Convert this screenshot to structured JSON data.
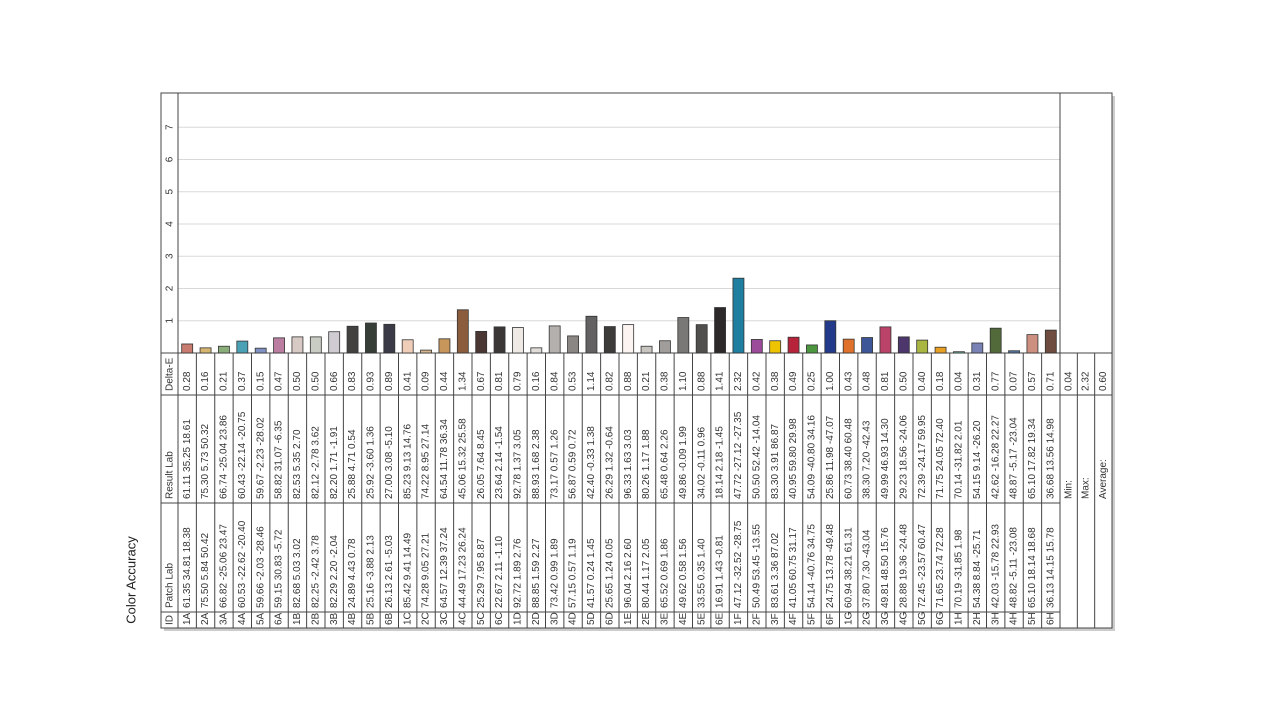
{
  "chart_data": {
    "type": "bar",
    "title": "Color Accuracy",
    "headers": [
      "ID",
      "Patch Lab",
      "Result Lab",
      "Delta-E"
    ],
    "ylim": [
      0,
      8
    ],
    "yticks": [
      1,
      2,
      3,
      4,
      5,
      6,
      7
    ],
    "grid": true,
    "categories": [
      "1A",
      "2A",
      "3A",
      "4A",
      "5A",
      "6A",
      "1B",
      "2B",
      "3B",
      "4B",
      "5B",
      "6B",
      "1C",
      "2C",
      "3C",
      "4C",
      "5C",
      "6C",
      "1D",
      "2D",
      "3D",
      "4D",
      "5D",
      "6D",
      "1E",
      "2E",
      "3E",
      "4E",
      "5E",
      "6E",
      "1F",
      "2F",
      "3F",
      "4F",
      "5F",
      "6F",
      "1G",
      "2G",
      "3G",
      "4G",
      "5G",
      "6G",
      "1H",
      "2H",
      "3H",
      "4H",
      "5H",
      "6H"
    ],
    "patch_lab": [
      "61.35 34.81 18.38",
      "75.50 5.84 50.42",
      "66.82 -25.06 23.47",
      "60.53 -22.62 -20.40",
      "59.66 -2.03 -28.46",
      "59.15 30.83 -5.72",
      "82.68 5.03 3.02",
      "82.25 -2.42 3.78",
      "82.29 2.20 -2.04",
      "24.89 4.43 0.78",
      "25.16 -3.88 2.13",
      "26.13 2.61 -5.03",
      "85.42 9.41 14.49",
      "74.28 9.05 27.21",
      "64.57 12.39 37.24",
      "44.49 17.23 26.24",
      "25.29 7.95 8.87",
      "22.67 2.11 -1.10",
      "92.72 1.89 2.76",
      "88.85 1.59 2.27",
      "73.42 0.99 1.89",
      "57.15 0.57 1.19",
      "41.57 0.24 1.45",
      "25.65 1.24 0.05",
      "96.04 2.16 2.60",
      "80.44 1.17 2.05",
      "65.52 0.69 1.86",
      "49.62 0.58 1.56",
      "33.55 0.35 1.40",
      "16.91 1.43 -0.81",
      "47.12 -32.52 -28.75",
      "50.49 53.45 -13.55",
      "83.61 3.36 87.02",
      "41.05 60.75 31.17",
      "54.14 -40.76 34.75",
      "24.75 13.78 -49.48",
      "60.94 38.21 61.31",
      "37.80 7.30 -43.04",
      "49.81 48.50 15.76",
      "28.88 19.36 -24.48",
      "72.45 -23.57 60.47",
      "71.65 23.74 72.28",
      "70.19 -31.85 1.98",
      "54.38 8.84 -25.71",
      "42.03 -15.78 22.93",
      "48.82 -5.11 -23.08",
      "65.10 18.14 18.68",
      "36.13 14.15 15.78"
    ],
    "result_lab": [
      "61.11 35.25 18.61",
      "75.30 5.73 50.32",
      "66.74 -25.04 23.86",
      "60.43 -22.14 -20.75",
      "59.67 -2.23 -28.02",
      "58.82 31.07 -6.35",
      "82.53 5.35 2.70",
      "82.12 -2.78 3.62",
      "82.20 1.71 -1.91",
      "25.88 4.71 0.54",
      "25.92 -3.60 1.36",
      "27.00 3.08 -5.10",
      "85.23 9.13 14.76",
      "74.22 8.95 27.14",
      "64.54 11.78 36.34",
      "45.06 15.32 25.58",
      "26.05 7.64 8.45",
      "23.64 2.14 -1.54",
      "92.78 1.37 3.05",
      "88.93 1.68 2.38",
      "73.17 0.57 1.26",
      "56.87 0.59 0.72",
      "42.40 -0.33 1.38",
      "26.29 1.32 -0.64",
      "96.33 1.63 3.03",
      "80.26 1.17 1.88",
      "65.48 0.64 2.26",
      "49.86 -0.09 1.99",
      "34.02 -0.11 0.96",
      "18.14 2.18 -1.45",
      "47.72 -27.12 -27.35",
      "50.50 52.42 -14.04",
      "83.30 3.91 86.87",
      "40.95 59.80 29.98",
      "54.09 -40.80 34.16",
      "25.86 11.98 -47.07",
      "60.73 38.40 60.48",
      "38.30 7.20 -42.43",
      "49.99 46.93 14.30",
      "29.23 18.56 -24.06",
      "72.39 -24.17 59.95",
      "71.75 24.05 72.40",
      "70.14 -31.82 2.01",
      "54.15 9.14 -26.20",
      "42.62 -16.28 22.27",
      "48.87 -5.17 -23.04",
      "65.10 17.82 19.34",
      "36.68 13.56 14.98"
    ],
    "values": [
      0.28,
      0.16,
      0.21,
      0.37,
      0.15,
      0.47,
      0.5,
      0.5,
      0.66,
      0.83,
      0.93,
      0.89,
      0.41,
      0.09,
      0.44,
      1.34,
      0.67,
      0.81,
      0.79,
      0.16,
      0.84,
      0.53,
      1.14,
      0.82,
      0.88,
      0.21,
      0.38,
      1.1,
      0.88,
      1.41,
      2.32,
      0.42,
      0.38,
      0.49,
      0.25,
      1.0,
      0.43,
      0.48,
      0.81,
      0.5,
      0.4,
      0.18,
      0.04,
      0.31,
      0.77,
      0.07,
      0.57,
      0.71
    ],
    "value_labels": [
      "0.28",
      "0.16",
      "0.21",
      "0.37",
      "0.15",
      "0.47",
      "0.50",
      "0.50",
      "0.66",
      "0.83",
      "0.93",
      "0.89",
      "0.41",
      "0.09",
      "0.44",
      "1.34",
      "0.67",
      "0.81",
      "0.79",
      "0.16",
      "0.84",
      "0.53",
      "1.14",
      "0.82",
      "0.88",
      "0.21",
      "0.38",
      "1.10",
      "0.88",
      "1.41",
      "2.32",
      "0.42",
      "0.38",
      "0.49",
      "0.25",
      "1.00",
      "0.43",
      "0.48",
      "0.81",
      "0.50",
      "0.40",
      "0.18",
      "0.04",
      "0.31",
      "0.77",
      "0.07",
      "0.57",
      "0.71"
    ],
    "colors": [
      "#c77c6f",
      "#d6b56e",
      "#8aae7a",
      "#4aa1b5",
      "#7f91c2",
      "#bb7ea0",
      "#d7c9c4",
      "#c9ccc3",
      "#cfcbd1",
      "#434040",
      "#373e38",
      "#3b3b47",
      "#f0cdb9",
      "#d6b48e",
      "#c6965a",
      "#8b5d3d",
      "#4a3733",
      "#3b3737",
      "#efe9e5",
      "#e0dcd8",
      "#b4b0ad",
      "#8a8684",
      "#636161",
      "#3e3b3b",
      "#fbf4f0",
      "#c8c4c0",
      "#a09d9a",
      "#7a7876",
      "#504f4e",
      "#2d2829",
      "#1e7fa0",
      "#9c4a9a",
      "#eec400",
      "#b6233a",
      "#4c9640",
      "#233a8a",
      "#e0712a",
      "#3c5697",
      "#bb4268",
      "#4c366c",
      "#a9b641",
      "#e7a024",
      "#70c0a6",
      "#7982b4",
      "#526a3a",
      "#5275a0",
      "#cc8f80",
      "#6f4c40"
    ],
    "summary": [
      {
        "label": "Min:",
        "value": "0.04"
      },
      {
        "label": "Max:",
        "value": "2.32"
      },
      {
        "label": "Average:",
        "value": "0.60"
      }
    ]
  }
}
